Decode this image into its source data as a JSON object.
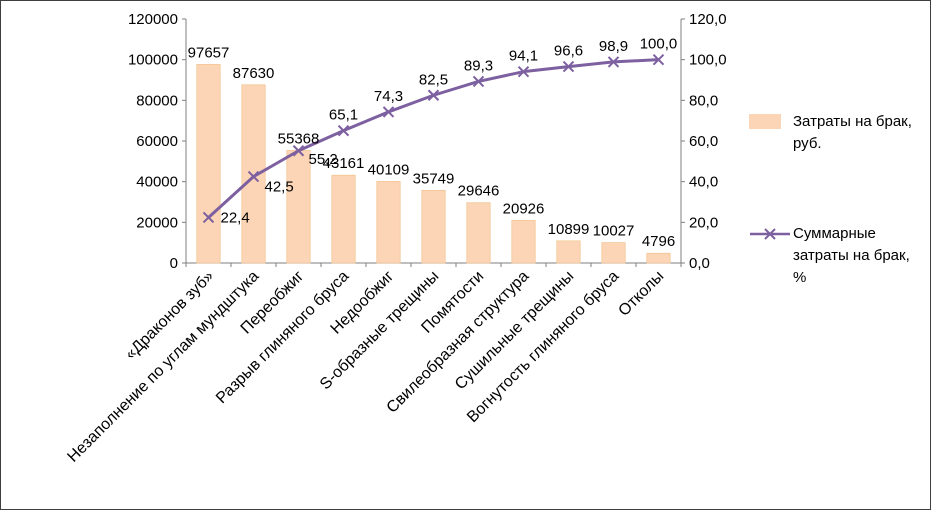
{
  "colors": {
    "bar_fill": "#FBD5B5",
    "bar_stroke": "#F3C492",
    "line": "#7D60A0",
    "axis": "#7F7F7F",
    "text": "#000000"
  },
  "legend": {
    "bars": "Затраты на брак, руб.",
    "line": "Суммарные затраты на брак, %"
  },
  "chart_data": {
    "type": "bar",
    "subtype": "pareto (bars on left axis + cumulative percent line on right axis)",
    "categories": [
      "«Драконов зуб»",
      "Незаполнение по углам мундштука",
      "Переобжиг",
      "Разрыв глиняного бруса",
      "Недообжиг",
      "S-образные трещины",
      "Помятости",
      "Свилеобразная структура",
      "Сушильные трещины",
      "Вогнутость глиняного бруса",
      "Отколы"
    ],
    "series": [
      {
        "name": "Затраты на брак, руб.",
        "type": "bar",
        "axis": "left",
        "values": [
          97657,
          87630,
          55368,
          43161,
          40109,
          35749,
          29646,
          20926,
          10899,
          10027,
          4796
        ],
        "labels": [
          "97657",
          "87630",
          "55368",
          "43161",
          "40109",
          "35749",
          "29646",
          "20926",
          "10899",
          "10027",
          "4796"
        ]
      },
      {
        "name": "Суммарные затраты на брак, %",
        "type": "line",
        "axis": "right",
        "marker": "x",
        "values": [
          22.4,
          42.5,
          55.2,
          65.1,
          74.3,
          82.5,
          89.3,
          94.1,
          96.6,
          98.9,
          100.0
        ],
        "labels": [
          "22,4",
          "42,5",
          "55,2",
          "65,1",
          "74,3",
          "82,5",
          "89,3",
          "94,1",
          "96,6",
          "98,9",
          "100,0"
        ]
      }
    ],
    "left_axis": {
      "min": 0,
      "max": 120000,
      "tick_labels": [
        "0",
        "20000",
        "40000",
        "60000",
        "80000",
        "100000",
        "120000"
      ]
    },
    "right_axis": {
      "min": 0,
      "max": 120,
      "tick_labels": [
        "0,0",
        "20,0",
        "40,0",
        "60,0",
        "80,0",
        "100,0",
        "120,0"
      ]
    },
    "grid": false,
    "legend_position": "right"
  }
}
